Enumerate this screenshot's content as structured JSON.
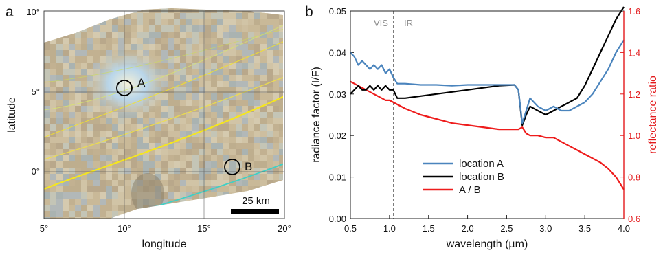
{
  "panel_a": {
    "letter": "a",
    "xlabel": "longitude",
    "ylabel": "latitude",
    "x_ticks": [
      "5°",
      "10°",
      "15°",
      "20°"
    ],
    "y_ticks": [
      "10°",
      "5°",
      "0°"
    ],
    "markers": [
      {
        "label": "A",
        "lon": 10.0,
        "lat": 5.1
      },
      {
        "label": "B",
        "lon": 16.7,
        "lat": 0.3
      }
    ],
    "scalebar_label": "25 km",
    "colors": {
      "contour_yellow": "#f2e22a",
      "contour_cyan": "#3fd0c6",
      "marker": "#000000"
    }
  },
  "panel_b": {
    "letter": "b",
    "annotations": {
      "vis": "VIS",
      "ir": "IR"
    },
    "colors": {
      "location_a": "#4a84bd",
      "location_b": "#000000",
      "ratio": "#ee1c1c",
      "right_axis": "#e31a1c",
      "divider": "#777777"
    }
  },
  "chart_data": {
    "type": "line",
    "xlabel": "wavelength (µm)",
    "ylabel": "radiance factor (I/F)",
    "y2label": "reflectance ratio",
    "xlim": [
      0.5,
      4.0
    ],
    "ylim": [
      0.0,
      0.05
    ],
    "y2lim": [
      0.6,
      1.6
    ],
    "x_ticks": [
      "0.5",
      "1.0",
      "1.5",
      "2.0",
      "2.5",
      "3.0",
      "3.5",
      "4.0"
    ],
    "y_ticks": [
      "0.00",
      "0.01",
      "0.02",
      "0.03",
      "0.04",
      "0.05"
    ],
    "y2_ticks": [
      "0.6",
      "0.8",
      "1.0",
      "1.2",
      "1.4",
      "1.6"
    ],
    "vis_ir_boundary": 1.05,
    "legend_position": "center",
    "series": [
      {
        "name": "location A",
        "axis": "left",
        "x": [
          0.5,
          0.55,
          0.6,
          0.65,
          0.7,
          0.75,
          0.8,
          0.85,
          0.9,
          0.95,
          1.0,
          1.05,
          1.1,
          1.2,
          1.4,
          1.6,
          1.8,
          2.0,
          2.2,
          2.4,
          2.6,
          2.65,
          2.7,
          2.75,
          2.8,
          2.9,
          3.0,
          3.1,
          3.2,
          3.3,
          3.4,
          3.5,
          3.6,
          3.7,
          3.8,
          3.9,
          4.0
        ],
        "y": [
          0.04,
          0.039,
          0.037,
          0.038,
          0.037,
          0.036,
          0.037,
          0.036,
          0.037,
          0.035,
          0.036,
          0.034,
          0.0325,
          0.0325,
          0.0322,
          0.0322,
          0.032,
          0.0322,
          0.0322,
          0.0322,
          0.0322,
          0.031,
          0.023,
          0.026,
          0.029,
          0.027,
          0.026,
          0.027,
          0.026,
          0.026,
          0.027,
          0.028,
          0.03,
          0.033,
          0.036,
          0.04,
          0.043
        ]
      },
      {
        "name": "location B",
        "axis": "left",
        "x": [
          0.5,
          0.55,
          0.6,
          0.65,
          0.7,
          0.75,
          0.8,
          0.85,
          0.9,
          0.95,
          1.0,
          1.05,
          1.1,
          1.2,
          1.4,
          1.6,
          1.8,
          2.0,
          2.2,
          2.4,
          2.6,
          2.65,
          2.7,
          2.75,
          2.8,
          2.9,
          3.0,
          3.1,
          3.2,
          3.3,
          3.4,
          3.5,
          3.6,
          3.7,
          3.8,
          3.9,
          4.0
        ],
        "y": [
          0.03,
          0.031,
          0.032,
          0.031,
          0.031,
          0.032,
          0.031,
          0.032,
          0.031,
          0.032,
          0.031,
          0.031,
          0.029,
          0.029,
          0.0295,
          0.03,
          0.0305,
          0.031,
          0.0315,
          0.032,
          0.0322,
          0.031,
          0.0225,
          0.025,
          0.027,
          0.026,
          0.025,
          0.026,
          0.027,
          0.028,
          0.029,
          0.032,
          0.036,
          0.04,
          0.044,
          0.048,
          0.051
        ]
      },
      {
        "name": "A / B",
        "axis": "right",
        "x": [
          0.5,
          0.55,
          0.6,
          0.65,
          0.7,
          0.75,
          0.8,
          0.85,
          0.9,
          0.95,
          1.0,
          1.05,
          1.1,
          1.2,
          1.4,
          1.6,
          1.8,
          2.0,
          2.2,
          2.4,
          2.6,
          2.65,
          2.7,
          2.75,
          2.8,
          2.9,
          3.0,
          3.1,
          3.2,
          3.3,
          3.4,
          3.5,
          3.6,
          3.7,
          3.8,
          3.9,
          4.0
        ],
        "y": [
          1.26,
          1.25,
          1.24,
          1.23,
          1.22,
          1.21,
          1.2,
          1.19,
          1.18,
          1.17,
          1.17,
          1.16,
          1.15,
          1.13,
          1.1,
          1.08,
          1.06,
          1.05,
          1.04,
          1.03,
          1.03,
          1.03,
          1.04,
          1.01,
          1.0,
          1.0,
          0.99,
          0.99,
          0.97,
          0.95,
          0.93,
          0.91,
          0.89,
          0.87,
          0.84,
          0.8,
          0.74
        ]
      }
    ]
  }
}
